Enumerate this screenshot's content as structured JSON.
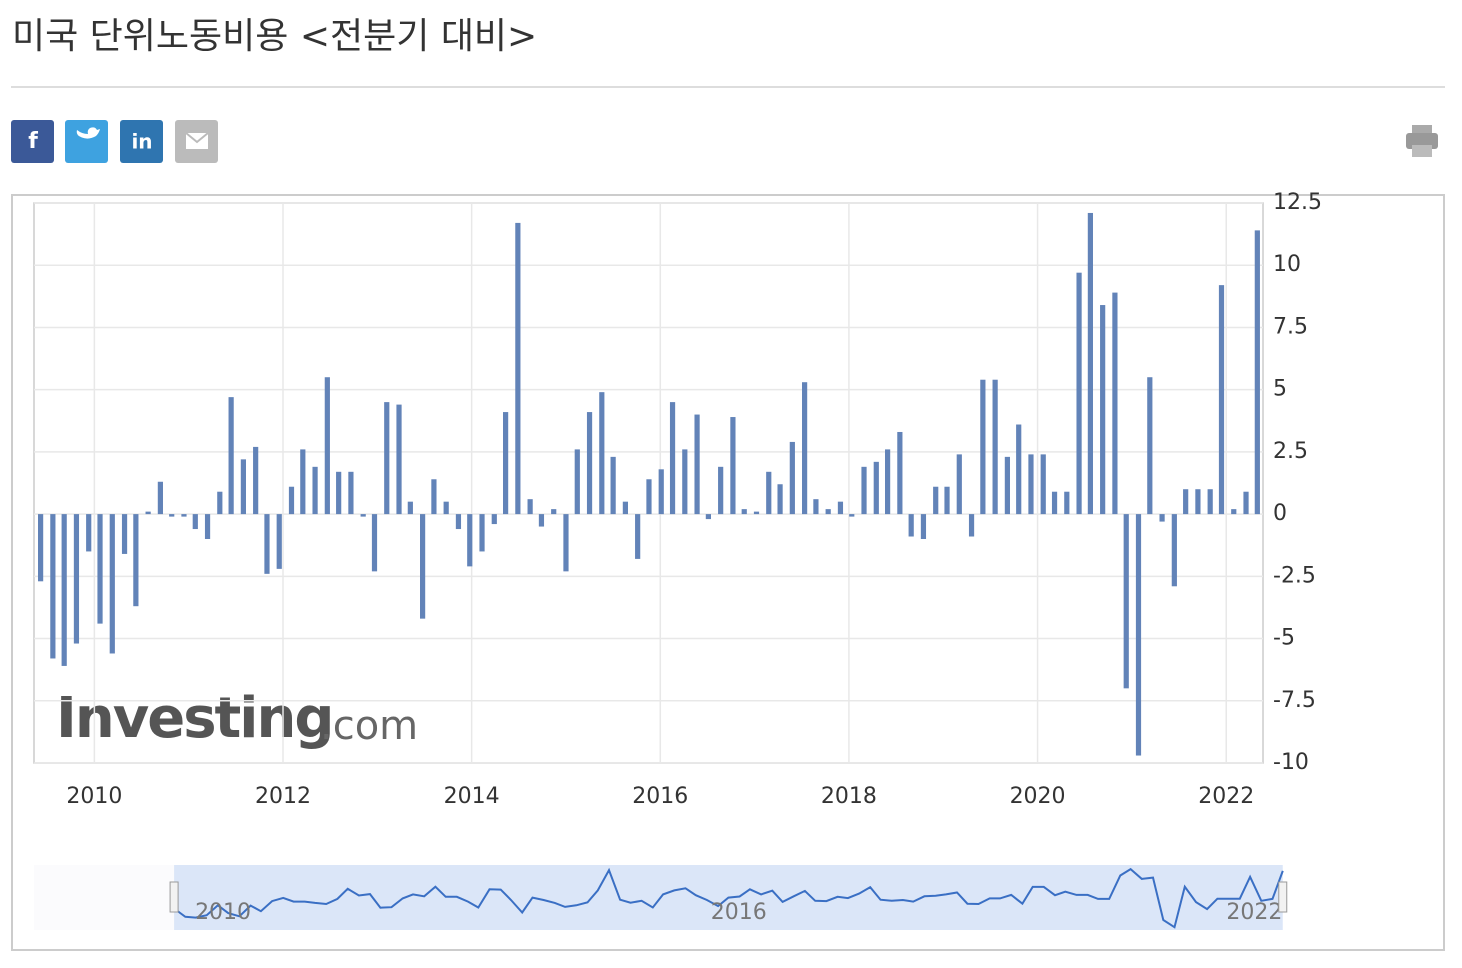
{
  "chart_data": {
    "type": "bar",
    "title": "미국 단위노동비용 <전분기 대비>",
    "watermark": {
      "brand": "Investing",
      "suffix": ".com"
    },
    "color": "#6283b8",
    "grid": true,
    "x": [
      2009.43,
      2009.56,
      2009.68,
      2009.81,
      2009.94,
      2010.06,
      2010.19,
      2010.32,
      2010.44,
      2010.57,
      2010.7,
      2010.82,
      2010.95,
      2011.07,
      2011.2,
      2011.33,
      2011.45,
      2011.58,
      2011.71,
      2011.83,
      2011.96,
      2012.09,
      2012.21,
      2012.34,
      2012.47,
      2012.59,
      2012.72,
      2012.85,
      2012.97,
      2013.1,
      2013.23,
      2013.35,
      2013.48,
      2013.6,
      2013.73,
      2013.86,
      2013.98,
      2014.11,
      2014.24,
      2014.36,
      2014.49,
      2014.62,
      2014.74,
      2014.87,
      2015.0,
      2015.12,
      2015.25,
      2015.38,
      2015.5,
      2015.63,
      2015.76,
      2015.88,
      2016.01,
      2016.13,
      2016.26,
      2016.39,
      2016.51,
      2016.64,
      2016.77,
      2016.89,
      2017.02,
      2017.15,
      2017.27,
      2017.4,
      2017.53,
      2017.65,
      2017.78,
      2017.91,
      2018.03,
      2018.16,
      2018.29,
      2018.41,
      2018.54,
      2018.66,
      2018.79,
      2018.92,
      2019.04,
      2019.17,
      2019.3,
      2019.42,
      2019.55,
      2019.68,
      2019.8,
      2019.93,
      2020.06,
      2020.18,
      2020.31,
      2020.44,
      2020.56,
      2020.69,
      2020.82,
      2020.94,
      2021.07,
      2021.19,
      2021.32,
      2021.45,
      2021.57,
      2021.7,
      2021.83,
      2021.95,
      2022.08,
      2022.21,
      2022.33
    ],
    "values": [
      -2.7,
      -5.8,
      -6.1,
      -5.2,
      -1.5,
      -4.4,
      -5.6,
      -1.6,
      -3.7,
      0.1,
      1.3,
      -0.1,
      -0.1,
      -0.6,
      -1.0,
      0.9,
      4.7,
      2.2,
      2.7,
      -2.4,
      -2.2,
      1.1,
      2.6,
      1.9,
      5.5,
      1.7,
      1.7,
      -0.1,
      -2.3,
      4.5,
      4.4,
      0.5,
      -4.2,
      1.4,
      0.5,
      -0.6,
      -2.1,
      -1.5,
      -0.4,
      4.1,
      11.7,
      0.6,
      -0.5,
      0.2,
      -2.3,
      2.6,
      4.1,
      4.9,
      2.3,
      0.5,
      -1.8,
      1.4,
      1.8,
      4.5,
      2.6,
      4.0,
      -0.2,
      1.9,
      3.9,
      0.2,
      0.1,
      1.7,
      1.2,
      2.9,
      5.3,
      0.6,
      0.2,
      0.5,
      -0.1,
      1.9,
      2.1,
      2.6,
      3.3,
      -0.9,
      -1.0,
      1.1,
      1.1,
      2.4,
      -0.9,
      5.4,
      5.4,
      2.3,
      3.6,
      2.4,
      2.4,
      0.9,
      0.9,
      9.7,
      12.1,
      8.4,
      8.9,
      -7.0,
      -9.7,
      5.5,
      -0.3,
      -2.9,
      1.0,
      1.0,
      1.0,
      9.2,
      0.2,
      0.9,
      11.4
    ],
    "xlim": [
      2009.36,
      2022.39
    ],
    "xticks": [
      2010,
      2012,
      2014,
      2016,
      2018,
      2020,
      2022
    ],
    "ylim": [
      -10,
      12.5
    ],
    "yticks": [
      12.5,
      10,
      7.5,
      5,
      2.5,
      0,
      -2.5,
      -5,
      -7.5,
      -10
    ],
    "navigator": {
      "xlim": [
        2007.8,
        2022.1
      ],
      "xticks": [
        2010,
        2016,
        2022
      ]
    }
  }
}
